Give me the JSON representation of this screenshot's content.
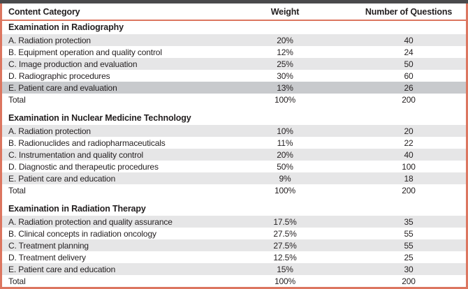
{
  "colors": {
    "frame_border": "#dc7660",
    "top_bar": "#4a4a4c",
    "row_shaded": "#e6e6e7",
    "row_highlight": "#c8cacd",
    "text": "#231f20"
  },
  "table": {
    "columns": [
      {
        "label": "Content Category"
      },
      {
        "label": "Weight"
      },
      {
        "label": "Number of Questions"
      }
    ],
    "sections": [
      {
        "title": "Examination in Radiography",
        "rows": [
          {
            "category": "A. Radiation protection",
            "weight": "20%",
            "questions": "40"
          },
          {
            "category": "B. Equipment operation and quality control",
            "weight": "12%",
            "questions": "24"
          },
          {
            "category": "C. Image production and evaluation",
            "weight": "25%",
            "questions": "50"
          },
          {
            "category": "D. Radiographic procedures",
            "weight": "30%",
            "questions": "60"
          },
          {
            "category": "E. Patient care and evaluation",
            "weight": "13%",
            "questions": "26",
            "highlight": true
          },
          {
            "category": "Total",
            "weight": "100%",
            "questions": "200"
          }
        ]
      },
      {
        "title": "Examination in Nuclear Medicine Technology",
        "rows": [
          {
            "category": "A. Radiation protection",
            "weight": "10%",
            "questions": "20"
          },
          {
            "category": "B. Radionuclides and radiopharmaceuticals",
            "weight": "11%",
            "questions": "22"
          },
          {
            "category": "C. Instrumentation and quality control",
            "weight": "20%",
            "questions": "40"
          },
          {
            "category": "D. Diagnostic and therapeutic procedures",
            "weight": "50%",
            "questions": "100"
          },
          {
            "category": "E. Patient care and education",
            "weight": "9%",
            "questions": "18"
          },
          {
            "category": "Total",
            "weight": "100%",
            "questions": "200"
          }
        ]
      },
      {
        "title": "Examination in Radiation Therapy",
        "rows": [
          {
            "category": "A. Radiation protection and quality assurance",
            "weight": "17.5%",
            "questions": "35"
          },
          {
            "category": "B. Clinical concepts in radiation oncology",
            "weight": "27.5%",
            "questions": "55"
          },
          {
            "category": "C. Treatment planning",
            "weight": "27.5%",
            "questions": "55"
          },
          {
            "category": "D. Treatment delivery",
            "weight": "12.5%",
            "questions": "25"
          },
          {
            "category": "E. Patient care and education",
            "weight": "15%",
            "questions": "30"
          },
          {
            "category": "Total",
            "weight": "100%",
            "questions": "200"
          }
        ]
      }
    ]
  }
}
